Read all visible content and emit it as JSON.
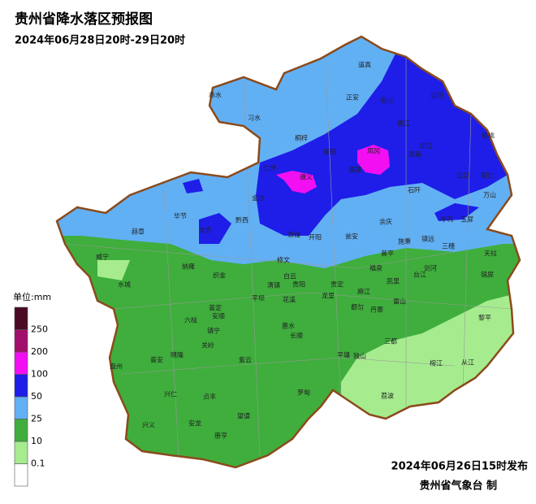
{
  "header": {
    "title": "贵州省降水落区预报图",
    "subtitle": "2024年06月28日20时-29日20时"
  },
  "legend": {
    "unit": "单位:mm",
    "ticks": [
      0.1,
      10,
      25,
      50,
      100,
      200,
      250
    ],
    "colors": [
      "#ffffff",
      "#a6ec8f",
      "#3fae3d",
      "#62b0f4",
      "#1e1ee8",
      "#f20ff2",
      "#a0106a",
      "#4a0a24"
    ]
  },
  "places": [
    "赤水",
    "习水",
    "道真",
    "正安",
    "务川",
    "沿河",
    "桐梓",
    "绥阳",
    "凤冈",
    "德江",
    "印江",
    "思南",
    "松桃",
    "仁怀",
    "遵义",
    "湄潭",
    "江口",
    "铜仁",
    "金沙",
    "石阡",
    "万山",
    "毕节",
    "大方",
    "黔西",
    "息烽",
    "开阳",
    "瓮安",
    "余庆",
    "施秉",
    "镇远",
    "岑巩",
    "玉屏",
    "赫章",
    "三穗",
    "天柱",
    "威宁",
    "纳雍",
    "织金",
    "修文",
    "福泉",
    "黄平",
    "剑河",
    "锦屏",
    "台江",
    "水城",
    "清镇",
    "贵阳",
    "白云",
    "龙里",
    "贵定",
    "麻江",
    "凯里",
    "雷山",
    "黎平",
    "平坝",
    "花溪",
    "都匀",
    "丹寨",
    "普定",
    "安顺",
    "六枝",
    "镇宁",
    "长顺",
    "惠水",
    "榕江",
    "从江",
    "三都",
    "关岭",
    "紫云",
    "平塘",
    "独山",
    "盘州",
    "晴隆",
    "普安",
    "兴仁",
    "贞丰",
    "罗甸",
    "荔波",
    "兴义",
    "安龙",
    "望谟",
    "册亨"
  ],
  "footer": {
    "issued": "2024年06月26日15时发布",
    "agency": "贵州省气象台 制"
  }
}
